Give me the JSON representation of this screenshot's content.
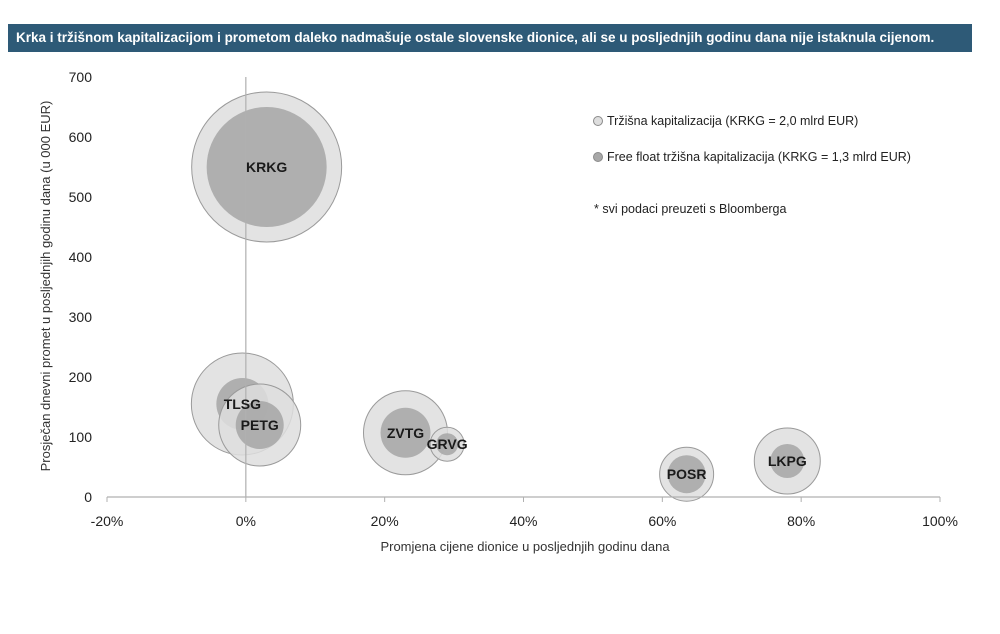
{
  "chart_data": {
    "type": "scatter",
    "title": "Krka i tržišnom kapitalizacijom i prometom daleko nadmašuje ostale slovenske dionice, ali se u posljednjih godinu dana nije istaknula cijenom.",
    "xlabel": "Promjena cijene dionice u posljednjih godinu dana",
    "ylabel": "Prosječan dnevni promet u posljednjih godinu dana (u 000 EUR)",
    "xlim": [
      -20,
      100
    ],
    "ylim": [
      0,
      700
    ],
    "x_ticks": [
      "-20%",
      "0%",
      "20%",
      "40%",
      "60%",
      "80%",
      "100%"
    ],
    "x_tick_values": [
      -20,
      0,
      20,
      40,
      60,
      80,
      100
    ],
    "y_ticks": [
      "0",
      "100",
      "200",
      "300",
      "400",
      "500",
      "600",
      "700"
    ],
    "y_tick_values": [
      0,
      100,
      200,
      300,
      400,
      500,
      600,
      700
    ],
    "legend": [
      {
        "label": "Tržišna kapitalizacija (KRKG = 2,0 mlrd EUR)",
        "color": "#dedede"
      },
      {
        "label": "Free float tržišna kapitalizacija (KRKG = 1,3 mlrd EUR)",
        "color": "#a8a8a8"
      }
    ],
    "note": "* svi podaci preuzeti s Bloomberga",
    "points": [
      {
        "label": "KRKG",
        "x": 3,
        "y": 550,
        "market_cap_r": 75,
        "free_float_r": 60
      },
      {
        "label": "TLSG",
        "x": -0.5,
        "y": 155,
        "market_cap_r": 51,
        "free_float_r": 26
      },
      {
        "label": "PETG",
        "x": 2,
        "y": 120,
        "market_cap_r": 41,
        "free_float_r": 24
      },
      {
        "label": "ZVTG",
        "x": 23,
        "y": 107,
        "market_cap_r": 42,
        "free_float_r": 25
      },
      {
        "label": "GRVG",
        "x": 29,
        "y": 88,
        "market_cap_r": 17,
        "free_float_r": 11
      },
      {
        "label": "POSR",
        "x": 63.5,
        "y": 38,
        "market_cap_r": 27,
        "free_float_r": 19
      },
      {
        "label": "LKPG",
        "x": 78,
        "y": 60,
        "market_cap_r": 33,
        "free_float_r": 17
      }
    ],
    "colors": {
      "market_cap": "#dedede",
      "free_float": "#a8a8a8",
      "outline": "#9a9a9a",
      "axis": "#b0b0b0"
    }
  }
}
